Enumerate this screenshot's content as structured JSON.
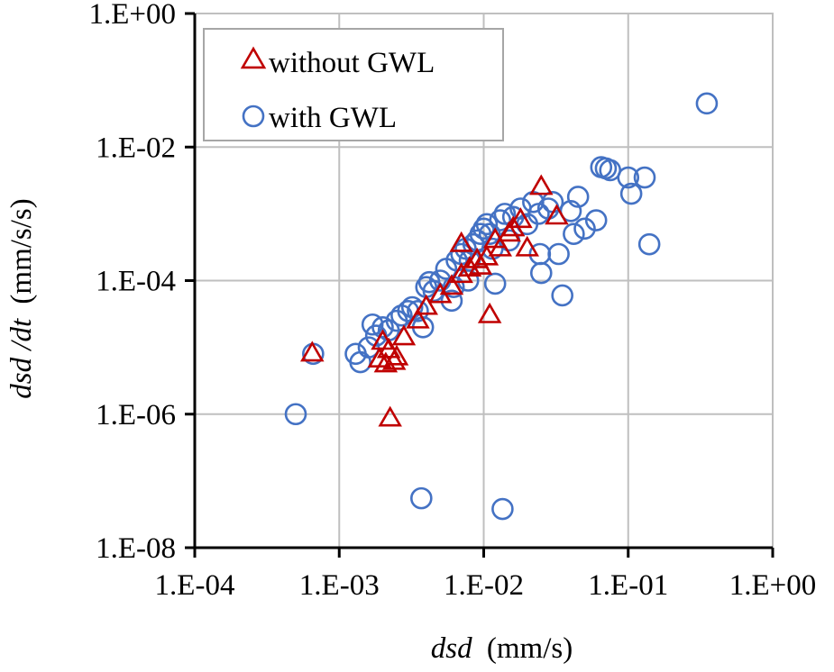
{
  "chart_data": {
    "type": "scatter",
    "title": "",
    "xlabel": {
      "var": "dsd",
      "unit": "(mm/s)"
    },
    "ylabel": {
      "var": "dsd /dt",
      "unit": "(mm/s/s)"
    },
    "xscale": "log",
    "yscale": "log",
    "xlim": [
      0.0001,
      1
    ],
    "ylim": [
      1e-08,
      1
    ],
    "grid": true,
    "legend_position": "top-left",
    "x_ticks": [
      {
        "value": 0.0001,
        "label": "1.E-04"
      },
      {
        "value": 0.001,
        "label": "1.E-03"
      },
      {
        "value": 0.01,
        "label": "1.E-02"
      },
      {
        "value": 0.1,
        "label": "1.E-01"
      },
      {
        "value": 1,
        "label": "1.E+00"
      }
    ],
    "y_ticks": [
      {
        "value": 1,
        "label": "1.E+00"
      },
      {
        "value": 0.01,
        "label": "1.E-02"
      },
      {
        "value": 0.0001,
        "label": "1.E-04"
      },
      {
        "value": 1e-06,
        "label": "1.E-06"
      },
      {
        "value": 1e-08,
        "label": "1.E-08"
      }
    ],
    "series": [
      {
        "name": "without GWL",
        "marker": "triangle",
        "color": "#c00000",
        "points": [
          [
            0.00065,
            8e-06
          ],
          [
            0.00225,
            8.5e-07
          ],
          [
            0.0019,
            6.5e-06
          ],
          [
            0.0021,
            5.5e-06
          ],
          [
            0.0024,
            6e-06
          ],
          [
            0.0022,
            9e-06
          ],
          [
            0.0025,
            7e-06
          ],
          [
            0.002,
            1.2e-05
          ],
          [
            0.0028,
            1.4e-05
          ],
          [
            0.0035,
            2.5e-05
          ],
          [
            0.004,
            4e-05
          ],
          [
            0.005,
            6e-05
          ],
          [
            0.006,
            8e-05
          ],
          [
            0.007,
            0.00012
          ],
          [
            0.008,
            0.00015
          ],
          [
            0.009,
            0.0002
          ],
          [
            0.0095,
            0.00016
          ],
          [
            0.0105,
            0.00022
          ],
          [
            0.011,
            3e-05
          ],
          [
            0.012,
            0.0004
          ],
          [
            0.015,
            0.0005
          ],
          [
            0.018,
            0.0008
          ],
          [
            0.02,
            0.0003
          ],
          [
            0.025,
            0.0025
          ],
          [
            0.032,
            0.0009
          ],
          [
            0.007,
            0.00035
          ],
          [
            0.013,
            0.0003
          ],
          [
            0.016,
            0.0006
          ]
        ]
      },
      {
        "name": "with GWL",
        "marker": "circle",
        "color": "#4472c4",
        "points": [
          [
            0.00066,
            8e-06
          ],
          [
            0.0005,
            1e-06
          ],
          [
            0.0013,
            8e-06
          ],
          [
            0.0014,
            6e-06
          ],
          [
            0.0016,
            1e-05
          ],
          [
            0.0017,
            2.2e-05
          ],
          [
            0.0018,
            1.5e-05
          ],
          [
            0.002,
            2e-05
          ],
          [
            0.0022,
            1.8e-05
          ],
          [
            0.0025,
            2.5e-05
          ],
          [
            0.0027,
            3e-05
          ],
          [
            0.003,
            3.5e-05
          ],
          [
            0.0032,
            4e-05
          ],
          [
            0.0035,
            3.5e-05
          ],
          [
            0.0038,
            2e-05
          ],
          [
            0.004,
            8e-05
          ],
          [
            0.0042,
            9.5e-05
          ],
          [
            0.0045,
            7e-05
          ],
          [
            0.005,
            0.0001
          ],
          [
            0.0055,
            0.00015
          ],
          [
            0.006,
            5e-05
          ],
          [
            0.0062,
            8e-05
          ],
          [
            0.0065,
            0.0002
          ],
          [
            0.007,
            0.00025
          ],
          [
            0.0075,
            0.0003
          ],
          [
            0.0078,
            0.0001
          ],
          [
            0.008,
            0.0002
          ],
          [
            0.0085,
            0.00035
          ],
          [
            0.009,
            0.0004
          ],
          [
            0.0095,
            0.0005
          ],
          [
            0.01,
            0.0006
          ],
          [
            0.0105,
            0.0007
          ],
          [
            0.011,
            0.0005
          ],
          [
            0.0115,
            0.0003
          ],
          [
            0.012,
            9e-05
          ],
          [
            0.013,
            0.0008
          ],
          [
            0.014,
            0.001
          ],
          [
            0.015,
            0.0004
          ],
          [
            0.016,
            0.0009
          ],
          [
            0.018,
            0.0012
          ],
          [
            0.02,
            0.0007
          ],
          [
            0.022,
            0.0015
          ],
          [
            0.024,
            0.001
          ],
          [
            0.0245,
            0.00025
          ],
          [
            0.025,
            0.00013
          ],
          [
            0.028,
            0.0012
          ],
          [
            0.03,
            0.0015
          ],
          [
            0.033,
            0.00025
          ],
          [
            0.035,
            6e-05
          ],
          [
            0.04,
            0.0011
          ],
          [
            0.042,
            0.0005
          ],
          [
            0.045,
            0.0018
          ],
          [
            0.05,
            0.0006
          ],
          [
            0.06,
            0.0008
          ],
          [
            0.065,
            0.005
          ],
          [
            0.07,
            0.0048
          ],
          [
            0.075,
            0.0045
          ],
          [
            0.1,
            0.0035
          ],
          [
            0.105,
            0.002
          ],
          [
            0.13,
            0.0035
          ],
          [
            0.14,
            0.00035
          ],
          [
            0.35,
            0.045
          ],
          [
            0.0037,
            5.5e-08
          ],
          [
            0.0135,
            3.8e-08
          ]
        ]
      }
    ]
  }
}
